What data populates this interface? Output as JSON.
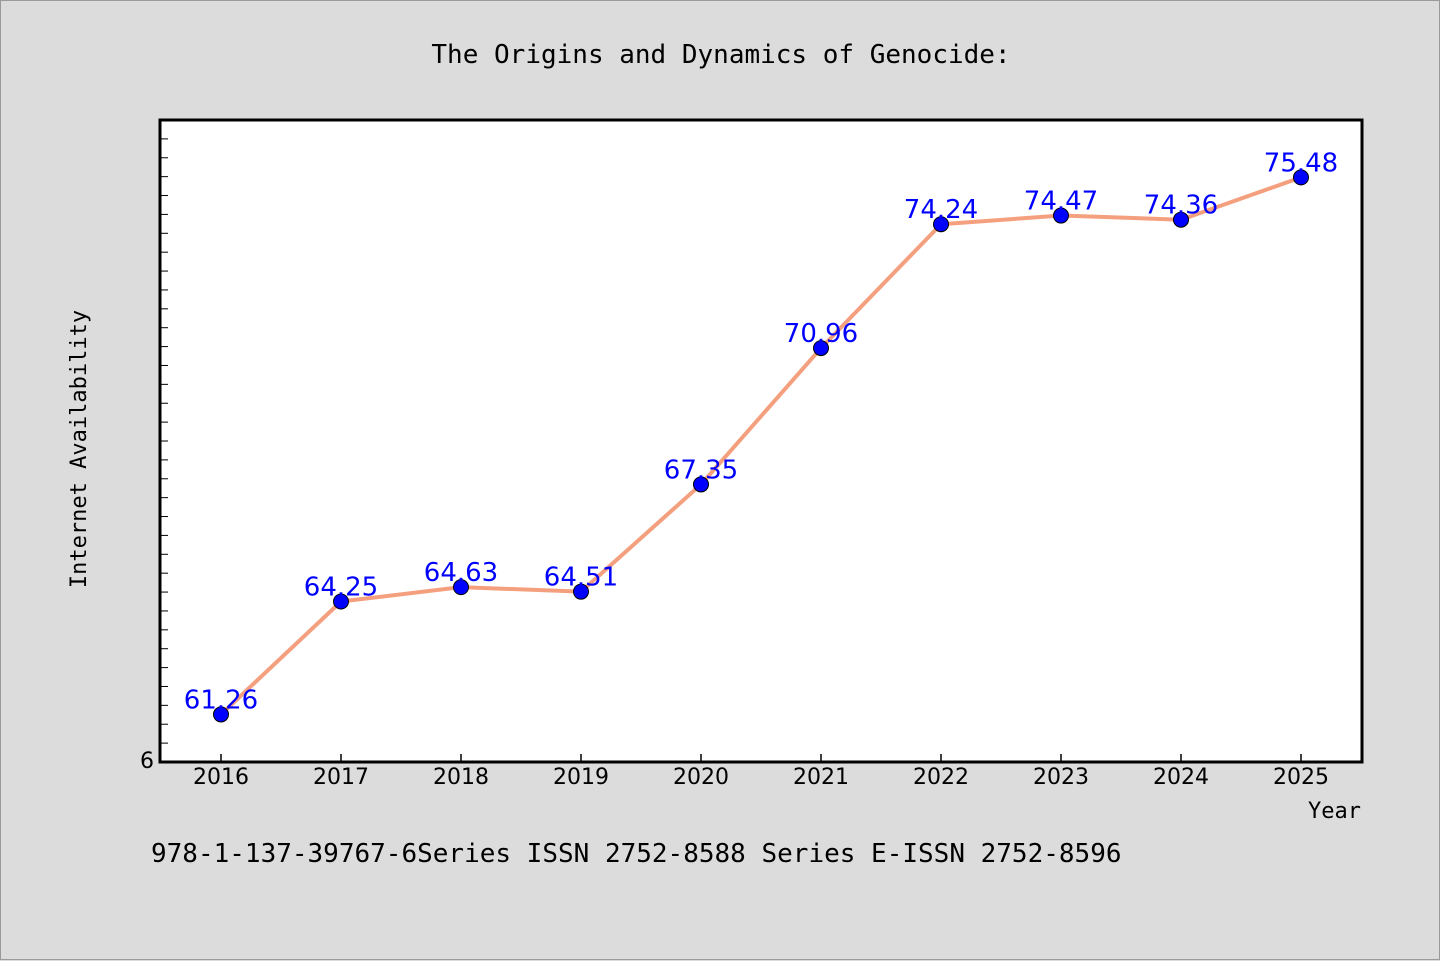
{
  "colors": {
    "background": "#dcdcdc",
    "plot_background": "#ffffff",
    "line": "#f4a07f",
    "marker": "#0000ff",
    "data_label": "#0000ff"
  },
  "footer": {
    "text": "978-1-137-39767-6Series ISSN 2752-8588 Series E-ISSN 2752-8596"
  },
  "chart_data": {
    "type": "line",
    "title": "The Origins and Dynamics of Genocide:",
    "xlabel": "Year",
    "ylabel": "Internet Availability",
    "categories": [
      "2016",
      "2017",
      "2018",
      "2019",
      "2020",
      "2021",
      "2022",
      "2023",
      "2024",
      "2025"
    ],
    "series": [
      {
        "values": [
          61.26,
          64.25,
          64.63,
          64.51,
          67.35,
          70.96,
          74.24,
          74.47,
          74.36,
          75.48
        ],
        "labels": [
          "61.26",
          "64.25",
          "64.63",
          "64.51",
          "67.35",
          "70.96",
          "74.24",
          "74.47",
          "74.36",
          "75.48"
        ],
        "line_color": "#f4a07f",
        "marker_color": "#0000ff",
        "marker": "circle"
      }
    ],
    "ylim": [
      60,
      77
    ],
    "y_tick_labels": [
      "6"
    ],
    "grid": false,
    "legend": "none"
  }
}
